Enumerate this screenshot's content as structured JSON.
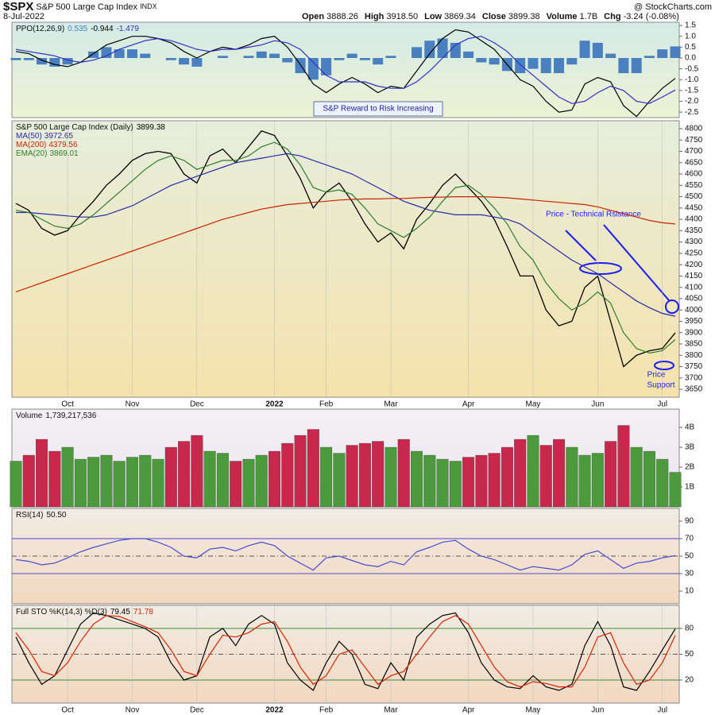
{
  "header": {
    "symbol": "$SPX",
    "name": "S&P 500 Large Cap Index",
    "exchange": "INDX",
    "date": "8-Jul-2022",
    "quotes": [
      {
        "label": "Open",
        "value": "3888.26"
      },
      {
        "label": "High",
        "value": "3918.50"
      },
      {
        "label": "Low",
        "value": "3869.34"
      },
      {
        "label": "Close",
        "value": "3899.38"
      },
      {
        "label": "Volume",
        "value": "1.7B"
      },
      {
        "label": "Chg",
        "value": "-3.24 (-0.08%)"
      }
    ],
    "credit": "@ StockCharts.com"
  },
  "chart_data": [
    {
      "type": "line",
      "title": "PPO(12,26,9)",
      "annotations": [
        "S&P Reward to Risk Increasing"
      ],
      "ylim": [
        -2.75,
        1.65
      ],
      "yticks": [
        1.5,
        {
          "value": 1,
          "label": "1.0"
        },
        0.5,
        {
          "value": 0,
          "label": "0.0"
        },
        -0.5,
        {
          "value": -1,
          "label": "-1.0"
        },
        -1.5,
        {
          "value": -2,
          "label": "-2.0"
        },
        -2.5
      ],
      "series": [
        {
          "type": "bar",
          "color": "#4a80c0",
          "values": [
            -0.1,
            -0.1,
            -0.3,
            -0.4,
            -0.3,
            0,
            0.3,
            0.5,
            0.4,
            0.4,
            0.2,
            0,
            -0.1,
            -0.3,
            -0.4,
            0,
            0.1,
            0,
            0.1,
            0.3,
            0.2,
            -0.2,
            -0.7,
            -1.0,
            -0.8,
            -0.1,
            0.2,
            -0.1,
            -0.3,
            0.1,
            0,
            0.5,
            0.8,
            0.9,
            0.7,
            0.3,
            -0.2,
            -0.3,
            -0.6,
            -0.7,
            -0.5,
            -0.7,
            -0.7,
            -0.3,
            0.8,
            0.7,
            0.2,
            -0.7,
            -0.7,
            0.1,
            0.4,
            0.535
          ]
        },
        {
          "type": "line",
          "color": "#000000",
          "values": [
            0.3,
            0.2,
            -0.1,
            -0.3,
            -0.4,
            -0.2,
            0.2,
            0.6,
            0.8,
            1.0,
            1.0,
            0.9,
            0.7,
            0.3,
            0.0,
            0.3,
            0.5,
            0.4,
            0.6,
            0.9,
            1.0,
            0.5,
            -0.3,
            -1.2,
            -1.6,
            -1.2,
            -0.9,
            -1.2,
            -1.6,
            -1.3,
            -1.4,
            -0.6,
            0.2,
            0.9,
            1.3,
            1.2,
            0.8,
            0.4,
            -0.3,
            -1.0,
            -1.3,
            -2.0,
            -2.5,
            -2.4,
            -1.2,
            -0.9,
            -1.1,
            -2.2,
            -2.7,
            -2.0,
            -1.4,
            -0.944
          ]
        },
        {
          "type": "line",
          "color": "#3030c8",
          "values": [
            0.4,
            0.3,
            0.2,
            0.1,
            -0.1,
            -0.2,
            -0.1,
            0.1,
            0.4,
            0.6,
            0.8,
            0.9,
            0.8,
            0.6,
            0.4,
            0.3,
            0.4,
            0.4,
            0.5,
            0.6,
            0.8,
            0.7,
            0.4,
            -0.2,
            -0.8,
            -1.1,
            -1.1,
            -1.1,
            -1.3,
            -1.4,
            -1.4,
            -1.1,
            -0.6,
            0.0,
            0.6,
            0.9,
            1.0,
            0.7,
            0.3,
            -0.3,
            -0.8,
            -1.3,
            -1.8,
            -2.1,
            -2.0,
            -1.6,
            -1.3,
            -1.5,
            -2.0,
            -2.1,
            -1.8,
            -1.479
          ]
        }
      ]
    },
    {
      "type": "line",
      "title": "S&P 500 Large Cap Index (Daily)",
      "annotations": [
        "Price - Technical Rsistance",
        "Price",
        "Support"
      ],
      "categories": [
        null,
        null,
        null,
        null,
        "Oct",
        null,
        null,
        null,
        null,
        "Nov",
        null,
        null,
        null,
        null,
        "Dec",
        null,
        null,
        null,
        null,
        null,
        "2022",
        null,
        null,
        null,
        "Feb",
        null,
        null,
        null,
        null,
        "Mar",
        null,
        null,
        null,
        null,
        null,
        "Apr",
        null,
        null,
        null,
        null,
        "May",
        null,
        null,
        null,
        null,
        "Jun",
        null,
        null,
        null,
        null,
        "Jul",
        null
      ],
      "ylim": [
        3615,
        4835
      ],
      "yticks": [
        3650,
        3700,
        3750,
        3800,
        3850,
        3900,
        3950,
        4000,
        4050,
        4100,
        4150,
        4200,
        4250,
        4300,
        4350,
        4400,
        4450,
        4500,
        4550,
        4600,
        4650,
        4700,
        4750,
        4800
      ],
      "series": [
        {
          "type": "line",
          "color": "#000000",
          "values": [
            4470,
            4440,
            4360,
            4330,
            4350,
            4420,
            4480,
            4550,
            4600,
            4660,
            4690,
            4700,
            4690,
            4600,
            4560,
            4680,
            4710,
            4650,
            4720,
            4790,
            4770,
            4680,
            4580,
            4450,
            4520,
            4560,
            4480,
            4380,
            4300,
            4340,
            4270,
            4400,
            4470,
            4550,
            4600,
            4540,
            4480,
            4400,
            4280,
            4150,
            4150,
            4000,
            3930,
            3950,
            4100,
            4150,
            3950,
            3750,
            3800,
            3820,
            3830,
            3899.38
          ]
        },
        {
          "name": "MA(50)",
          "type": "line",
          "color": "#2a2aa8",
          "values": [
            4430,
            4430,
            4425,
            4420,
            4415,
            4410,
            4410,
            4420,
            4440,
            4460,
            4490,
            4520,
            4550,
            4570,
            4590,
            4610,
            4630,
            4650,
            4660,
            4670,
            4680,
            4690,
            4680,
            4660,
            4640,
            4620,
            4600,
            4570,
            4540,
            4510,
            4480,
            4460,
            4440,
            4430,
            4420,
            4420,
            4420,
            4410,
            4400,
            4380,
            4340,
            4300,
            4260,
            4220,
            4190,
            4160,
            4120,
            4080,
            4040,
            4010,
            3985,
            3972.65
          ]
        },
        {
          "name": "MA(200)",
          "type": "line",
          "color": "#cc2200",
          "values": [
            4080,
            4100,
            4120,
            4140,
            4160,
            4180,
            4200,
            4220,
            4240,
            4260,
            4280,
            4300,
            4320,
            4340,
            4360,
            4380,
            4400,
            4415,
            4430,
            4445,
            4455,
            4465,
            4470,
            4475,
            4480,
            4485,
            4488,
            4490,
            4490,
            4492,
            4492,
            4495,
            4497,
            4498,
            4500,
            4500,
            4500,
            4498,
            4495,
            4490,
            4485,
            4480,
            4475,
            4470,
            4465,
            4455,
            4440,
            4425,
            4410,
            4395,
            4385,
            4379.56
          ]
        },
        {
          "name": "EMA(20)",
          "type": "line",
          "color": "#2e7d2e",
          "values": [
            4440,
            4430,
            4400,
            4370,
            4360,
            4380,
            4420,
            4470,
            4520,
            4570,
            4620,
            4660,
            4680,
            4660,
            4620,
            4640,
            4660,
            4660,
            4680,
            4720,
            4740,
            4710,
            4640,
            4540,
            4520,
            4530,
            4510,
            4450,
            4380,
            4350,
            4320,
            4360,
            4410,
            4480,
            4540,
            4550,
            4510,
            4450,
            4380,
            4280,
            4220,
            4120,
            4050,
            4000,
            4030,
            4080,
            4030,
            3900,
            3830,
            3810,
            3820,
            3869.01
          ]
        }
      ]
    },
    {
      "type": "bar",
      "title": "Volume",
      "last_label": "1,739,217,536",
      "up_color": "#4c9a3c",
      "down_color": "#c8284c",
      "ylim": [
        0,
        4920000000
      ],
      "yticks": [
        {
          "value": 1000000000,
          "label": "1B"
        },
        {
          "value": 2000000000,
          "label": "2B"
        },
        {
          "value": 3000000000,
          "label": "3B"
        },
        {
          "value": 4000000000,
          "label": "4B"
        }
      ],
      "values": [
        2300000000,
        2600000000,
        3400000000,
        2800000000,
        3000000000,
        2400000000,
        2500000000,
        2600000000,
        2300000000,
        2500000000,
        2600000000,
        2400000000,
        3000000000,
        3300000000,
        3600000000,
        2800000000,
        2700000000,
        2300000000,
        2400000000,
        2600000000,
        2800000000,
        3200000000,
        3600000000,
        3900000000,
        3000000000,
        2700000000,
        3100000000,
        3200000000,
        3300000000,
        3000000000,
        3400000000,
        2800000000,
        2600000000,
        2400000000,
        2300000000,
        2500000000,
        2600000000,
        2700000000,
        3000000000,
        3400000000,
        3600000000,
        3100000000,
        3400000000,
        3000000000,
        2600000000,
        2700000000,
        3300000000,
        4100000000,
        3000000000,
        2800000000,
        2400000000,
        1739217536
      ]
    },
    {
      "type": "line",
      "title": "RSI(14)",
      "last_label": "50.50",
      "ylim": [
        -4.5,
        104.5
      ],
      "yticks": [
        10,
        30,
        50,
        70,
        90
      ],
      "levels": [
        30,
        50,
        70
      ],
      "level_color": "#4a4ad0",
      "series": [
        {
          "type": "line",
          "color": "#4a4ad0",
          "values": [
            46,
            44,
            40,
            42,
            48,
            55,
            60,
            64,
            68,
            70,
            70,
            66,
            60,
            50,
            48,
            58,
            60,
            56,
            62,
            66,
            62,
            50,
            42,
            34,
            48,
            50,
            45,
            40,
            38,
            44,
            40,
            55,
            60,
            66,
            68,
            58,
            50,
            46,
            40,
            34,
            38,
            36,
            34,
            40,
            52,
            56,
            46,
            36,
            42,
            44,
            48,
            50.5
          ]
        }
      ]
    },
    {
      "type": "line",
      "title": "Full STO %K(14,3) %D(3)",
      "ylim": [
        -6.8,
        106.8
      ],
      "yticks": [
        20,
        50,
        80
      ],
      "levels": [
        20,
        50,
        80
      ],
      "level_color": "#3a8a3a",
      "categories": [
        null,
        null,
        null,
        null,
        "Oct",
        null,
        null,
        null,
        null,
        "Nov",
        null,
        null,
        null,
        null,
        "Dec",
        null,
        null,
        null,
        null,
        null,
        "2022",
        null,
        null,
        null,
        "Feb",
        null,
        null,
        null,
        null,
        "Mar",
        null,
        null,
        null,
        null,
        null,
        "Apr",
        null,
        null,
        null,
        null,
        "May",
        null,
        null,
        null,
        null,
        "Jun",
        null,
        null,
        null,
        null,
        "Jul",
        null
      ],
      "series": [
        {
          "type": "line",
          "color": "#000000",
          "values": [
            70,
            40,
            15,
            25,
            55,
            85,
            98,
            95,
            90,
            85,
            80,
            70,
            40,
            20,
            25,
            70,
            80,
            60,
            85,
            95,
            85,
            40,
            20,
            8,
            40,
            65,
            50,
            15,
            10,
            40,
            20,
            70,
            85,
            95,
            98,
            75,
            40,
            20,
            12,
            10,
            25,
            12,
            8,
            15,
            60,
            88,
            60,
            12,
            8,
            30,
            55,
            79.45
          ]
        },
        {
          "type": "line",
          "color": "#dd2200",
          "values": [
            75,
            55,
            30,
            25,
            40,
            65,
            85,
            95,
            94,
            88,
            82,
            75,
            55,
            30,
            25,
            50,
            72,
            70,
            75,
            85,
            88,
            65,
            35,
            15,
            25,
            50,
            55,
            35,
            15,
            25,
            30,
            50,
            70,
            88,
            95,
            85,
            60,
            35,
            18,
            12,
            18,
            16,
            12,
            12,
            35,
            70,
            75,
            40,
            15,
            20,
            40,
            71.78
          ]
        }
      ]
    }
  ]
}
